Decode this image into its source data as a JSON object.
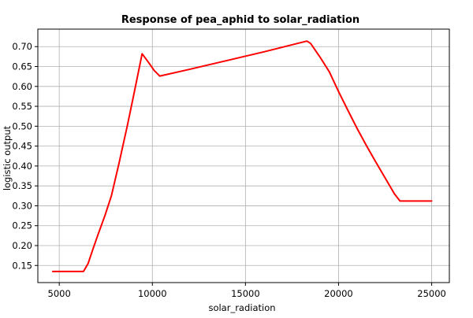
{
  "chart_data": {
    "type": "line",
    "title": "Response of pea_aphid to solar_radiation",
    "xlabel": "solar_radiation",
    "ylabel": "logistic output",
    "xlim": [
      3850,
      25950
    ],
    "ylim": [
      0.107,
      0.744
    ],
    "xticks": [
      5000,
      10000,
      15000,
      20000,
      25000
    ],
    "yticks": [
      0.15,
      0.2,
      0.25,
      0.3,
      0.35,
      0.4,
      0.45,
      0.5,
      0.55,
      0.6,
      0.65,
      0.7
    ],
    "xtick_labels": [
      "5000",
      "10000",
      "15000",
      "20000",
      "25000"
    ],
    "ytick_labels": [
      "0.15",
      "0.20",
      "0.25",
      "0.30",
      "0.35",
      "0.40",
      "0.45",
      "0.50",
      "0.55",
      "0.60",
      "0.65",
      "0.70"
    ],
    "grid": true,
    "series": [
      {
        "color": "#ff0000",
        "x": [
          4650,
          6300,
          6550,
          6800,
          7100,
          7450,
          7800,
          8200,
          8650,
          9050,
          9450,
          9800,
          10100,
          10400,
          12000,
          14000,
          16000,
          18300,
          18500,
          19000,
          19500,
          20000,
          20500,
          21000,
          21500,
          22000,
          22500,
          23000,
          23300,
          25000
        ],
        "y": [
          0.135,
          0.135,
          0.155,
          0.19,
          0.23,
          0.275,
          0.325,
          0.405,
          0.5,
          0.59,
          0.682,
          0.66,
          0.64,
          0.626,
          0.643,
          0.665,
          0.687,
          0.714,
          0.708,
          0.674,
          0.637,
          0.587,
          0.54,
          0.494,
          0.451,
          0.41,
          0.37,
          0.33,
          0.312,
          0.312
        ]
      }
    ]
  }
}
